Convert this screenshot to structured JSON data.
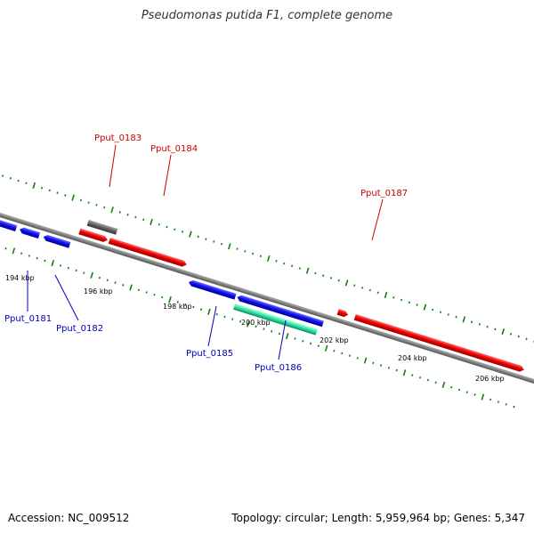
{
  "title": "Pseudomonas putida F1, complete genome",
  "footer": {
    "accession": "Accession: NC_009512",
    "summary": "Topology: circular; Length: 5,959,964 bp; Genes: 5,347"
  },
  "colors": {
    "plus_strand_gene": "#ee0000",
    "minus_strand_gene": "#1010ee",
    "cds_feature": "#2ee8a8",
    "other_feature": "#666666",
    "backbone": "#888888",
    "tick": "#108010",
    "plus_label": "#cc0000",
    "minus_label": "#0000bb"
  },
  "scale_labels": [
    "194 kbp",
    "196 kbp",
    "198 kbp",
    "200 kbp",
    "202 kbp",
    "204 kbp",
    "206 kbp"
  ],
  "gene_labels": [
    {
      "name": "Pput_0181",
      "strand": "minus"
    },
    {
      "name": "Pput_0182",
      "strand": "minus"
    },
    {
      "name": "Pput_0183",
      "strand": "plus"
    },
    {
      "name": "Pput_0184",
      "strand": "plus"
    },
    {
      "name": "Pput_0185",
      "strand": "minus"
    },
    {
      "name": "Pput_0186",
      "strand": "minus"
    },
    {
      "name": "Pput_0187",
      "strand": "plus"
    }
  ]
}
